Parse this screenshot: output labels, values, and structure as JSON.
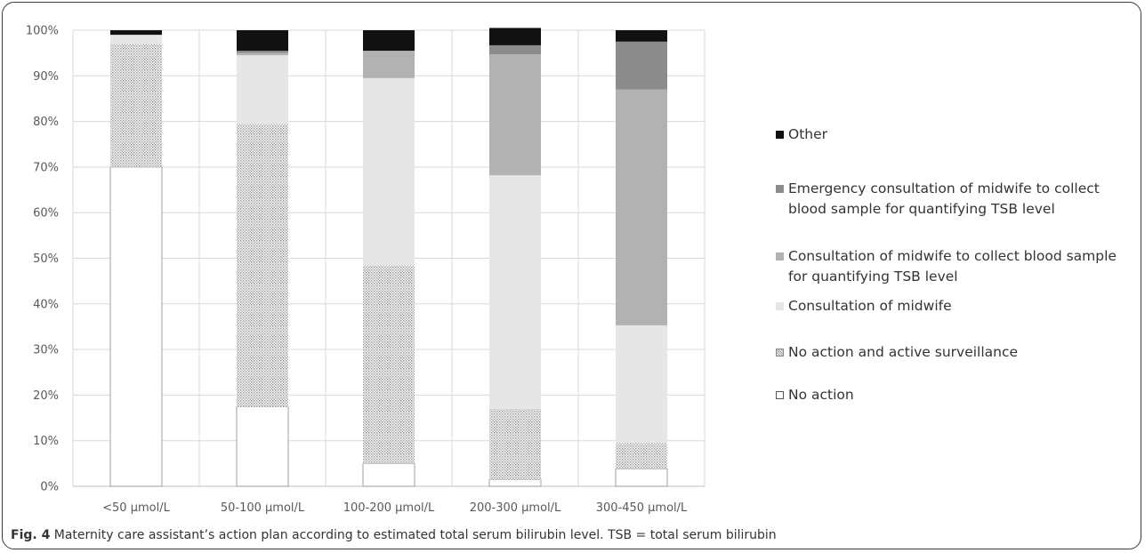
{
  "chart_data": {
    "type": "bar",
    "stacked": true,
    "categories": [
      "<50 µmol/L",
      "50-100 µmol/L",
      "100-200 µmol/L",
      "200-300 µmol/L",
      "300-450 µmol/L"
    ],
    "series": [
      {
        "name": "No action",
        "color": "#ffffff",
        "pattern": "none",
        "values": [
          70,
          17.5,
          5,
          1.5,
          3.8
        ]
      },
      {
        "name": "No action and active surveillance",
        "color": "#d0d0d0",
        "pattern": "dots",
        "values": [
          27,
          62,
          43.5,
          15.5,
          5.7
        ]
      },
      {
        "name": "Consultation of midwife",
        "color": "#e6e6e6",
        "pattern": "none",
        "values": [
          2,
          15,
          41,
          51.2,
          25.8
        ]
      },
      {
        "name": "Consultation of midwife to collect blood sample\nfor quantifying TSB level",
        "color": "#b2b2b2",
        "pattern": "none",
        "values": [
          0,
          0.5,
          6,
          26.5,
          51.7
        ]
      },
      {
        "name": "Emergency consultation of midwife to collect\nblood sample for quantifying TSB level",
        "color": "#8c8c8c",
        "pattern": "none",
        "values": [
          0,
          0.5,
          0,
          2,
          10.5
        ]
      },
      {
        "name": "Other",
        "color": "#111111",
        "pattern": "none",
        "values": [
          1,
          4.5,
          4.5,
          3.8,
          2.5
        ]
      }
    ],
    "y_ticks": [
      "0%",
      "10%",
      "20%",
      "30%",
      "40%",
      "50%",
      "60%",
      "70%",
      "80%",
      "90%",
      "100%"
    ],
    "ylim": [
      0,
      100
    ],
    "grid": true,
    "legend_position": "right",
    "legend_order": [
      5,
      4,
      3,
      2,
      1,
      0
    ]
  },
  "caption": {
    "label": "Fig. 4",
    "text": " Maternity care assistant’s action plan according to estimated total serum bilirubin level. TSB = total serum bilirubin"
  }
}
